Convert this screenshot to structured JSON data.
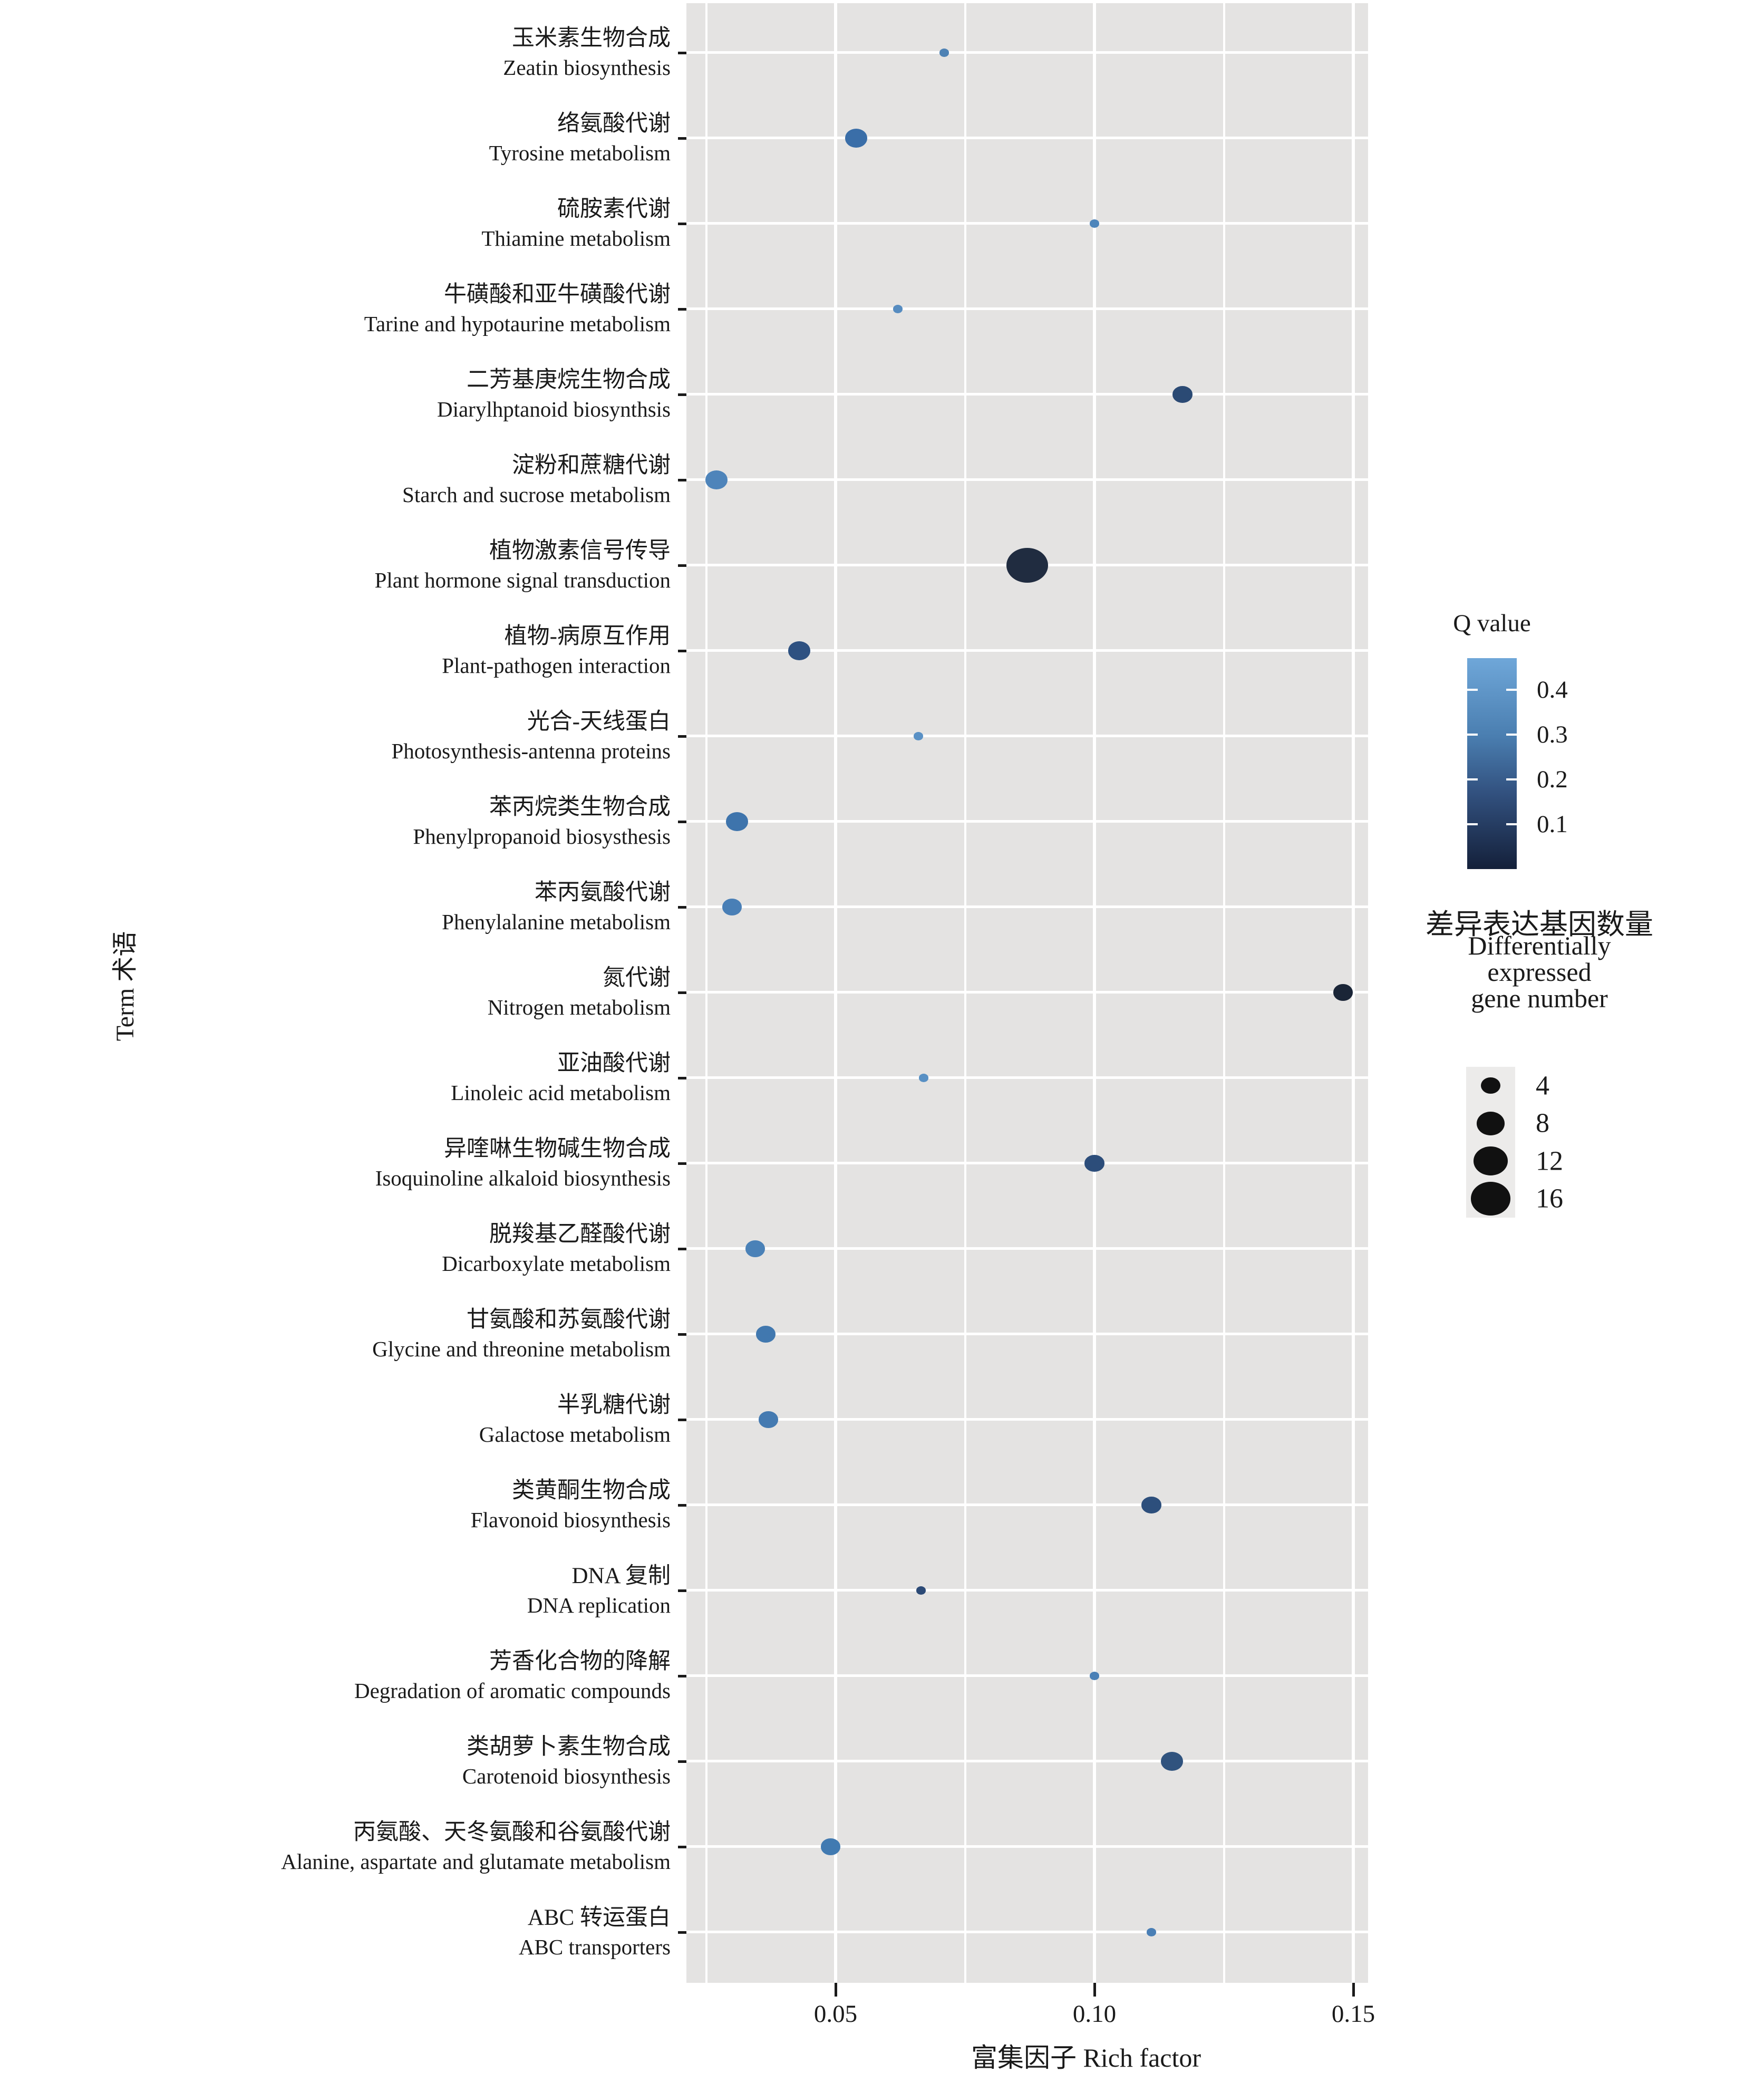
{
  "chart_data": {
    "type": "scatter",
    "subtype": "bubble-enrichment",
    "title": "",
    "xlabel": "富集因子 Rich factor",
    "ylabel": "Term 术语",
    "xlim": [
      0.0212,
      0.1529
    ],
    "x_tick_values": [
      0.05,
      0.1,
      0.15
    ],
    "x_tick_labels": [
      "0.05",
      "0.10",
      "0.15"
    ],
    "x_minor_gridline_values": [
      0.025,
      0.075,
      0.125
    ],
    "grid": true,
    "panel_bg": "#e4e3e2",
    "gridline_color": "#ffffff",
    "legend_position": "right",
    "points": [
      {
        "term_cn": "玉米素生物合成",
        "term_en": "Zeatin biosynthesis",
        "rich_factor": 0.071,
        "gene_number": 1,
        "q_value": 0.33,
        "color": "#4e82b4"
      },
      {
        "term_cn": "络氨酸代谢",
        "term_en": "Tyrosine metabolism",
        "rich_factor": 0.054,
        "gene_number": 5,
        "q_value": 0.27,
        "color": "#3a6ea8"
      },
      {
        "term_cn": "硫胺素代谢",
        "term_en": "Thiamine metabolism",
        "rich_factor": 0.1,
        "gene_number": 1,
        "q_value": 0.34,
        "color": "#4d85bb"
      },
      {
        "term_cn": "牛磺酸和亚牛磺酸代谢",
        "term_en": "Tarine and hypotaurine metabolism",
        "rich_factor": 0.062,
        "gene_number": 1,
        "q_value": 0.38,
        "color": "#568cc0"
      },
      {
        "term_cn": "二芳基庚烷生物合成",
        "term_en": "Diarylhptanoid biosynthsis",
        "rich_factor": 0.117,
        "gene_number": 4,
        "q_value": 0.13,
        "color": "#2b4a74"
      },
      {
        "term_cn": "淀粉和蔗糖代谢",
        "term_en": "Starch and sucrose metabolism",
        "rich_factor": 0.027,
        "gene_number": 5,
        "q_value": 0.34,
        "color": "#4e84ba"
      },
      {
        "term_cn": "植物激素信号传导",
        "term_en": "Plant hormone signal transduction",
        "rich_factor": 0.087,
        "gene_number": 17,
        "q_value": 0.04,
        "color": "#202c40"
      },
      {
        "term_cn": "植物-病原互作用",
        "term_en": "Plant-pathogen interaction",
        "rich_factor": 0.043,
        "gene_number": 5,
        "q_value": 0.17,
        "color": "#2e5181"
      },
      {
        "term_cn": "光合-天线蛋白",
        "term_en": "Photosynthesis-antenna proteins",
        "rich_factor": 0.066,
        "gene_number": 1,
        "q_value": 0.4,
        "color": "#5a91c5"
      },
      {
        "term_cn": "苯丙烷类生物合成",
        "term_en": "Phenylpropanoid biosysthesis",
        "rich_factor": 0.031,
        "gene_number": 5,
        "q_value": 0.28,
        "color": "#3e74ac"
      },
      {
        "term_cn": "苯丙氨酸代谢",
        "term_en": "Phenylalanine metabolism",
        "rich_factor": 0.03,
        "gene_number": 4,
        "q_value": 0.32,
        "color": "#497fb6"
      },
      {
        "term_cn": "氮代谢",
        "term_en": "Nitrogen metabolism",
        "rich_factor": 0.148,
        "gene_number": 4,
        "q_value": 0.02,
        "color": "#1a2537"
      },
      {
        "term_cn": "亚油酸代谢",
        "term_en": "Linoleic acid metabolism",
        "rich_factor": 0.067,
        "gene_number": 1,
        "q_value": 0.39,
        "color": "#5890c4"
      },
      {
        "term_cn": "异喹啉生物碱生物合成",
        "term_en": "Isoquinoline alkaloid biosynthesis",
        "rich_factor": 0.1,
        "gene_number": 4,
        "q_value": 0.14,
        "color": "#2c4d7a"
      },
      {
        "term_cn": "脱羧基乙醛酸代谢",
        "term_en": "Dicarboxylate metabolism",
        "rich_factor": 0.0345,
        "gene_number": 4,
        "q_value": 0.33,
        "color": "#4a81b7"
      },
      {
        "term_cn": "甘氨酸和苏氨酸代谢",
        "term_en": "Glycine and threonine metabolism",
        "rich_factor": 0.0365,
        "gene_number": 4,
        "q_value": 0.29,
        "color": "#4178af"
      },
      {
        "term_cn": "半乳糖代谢",
        "term_en": "Galactose metabolism",
        "rich_factor": 0.037,
        "gene_number": 4,
        "q_value": 0.3,
        "color": "#447ab1"
      },
      {
        "term_cn": "类黄酮生物合成",
        "term_en": "Flavonoid biosynthesis",
        "rich_factor": 0.111,
        "gene_number": 4,
        "q_value": 0.15,
        "color": "#2d4f7c"
      },
      {
        "term_cn": "DNA 复制",
        "term_en": "DNA replication",
        "rich_factor": 0.0665,
        "gene_number": 1,
        "q_value": 0.14,
        "color": "#2c4a76"
      },
      {
        "term_cn": "芳香化合物的降解",
        "term_en": "Degradation of aromatic compounds",
        "rich_factor": 0.1,
        "gene_number": 1,
        "q_value": 0.32,
        "color": "#4a80b6"
      },
      {
        "term_cn": "类胡萝卜素生物合成",
        "term_en": "Carotenoid biosynthesis",
        "rich_factor": 0.115,
        "gene_number": 5,
        "q_value": 0.16,
        "color": "#30537e"
      },
      {
        "term_cn": "丙氨酸、天冬氨酸和谷氨酸代谢",
        "term_en": "Alanine, aspartate and glutamate metabolism",
        "rich_factor": 0.049,
        "gene_number": 4,
        "q_value": 0.3,
        "color": "#417ab1"
      },
      {
        "term_cn": "ABC 转运蛋白",
        "term_en": "ABC transporters",
        "rich_factor": 0.111,
        "gene_number": 1,
        "q_value": 0.32,
        "color": "#4a7fb5"
      }
    ]
  },
  "legend_q": {
    "title": "Q value",
    "tick_labels": [
      "0.4",
      "0.3",
      "0.2",
      "0.1"
    ],
    "tick_values": [
      0.4,
      0.3,
      0.2,
      0.1
    ],
    "bar_range": [
      0.47,
      0.0
    ],
    "color_top": "#6fa7d9",
    "color_upper_mid": "#4a7eb0",
    "color_lower_mid": "#32517f",
    "color_bottom": "#14203a"
  },
  "legend_size": {
    "title_cn": "差异表达基因数量",
    "title_en_lines": [
      "Differentially",
      "expressed",
      "gene number"
    ],
    "entries": [
      {
        "label": "4",
        "value": 4
      },
      {
        "label": "8",
        "value": 8
      },
      {
        "label": "12",
        "value": 12
      },
      {
        "label": "16",
        "value": 16
      }
    ],
    "key_bg": "#ecebea",
    "dot_color": "#111111"
  }
}
